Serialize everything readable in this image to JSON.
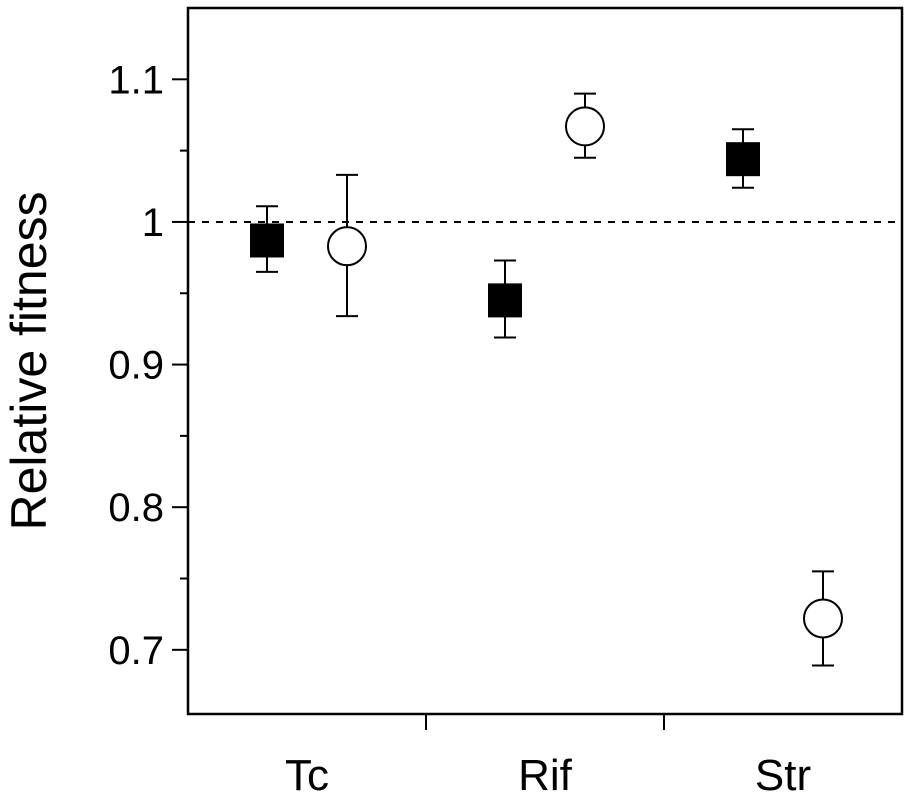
{
  "chart_data": {
    "type": "scatter",
    "title": "",
    "xlabel": "",
    "ylabel": "Relative fitness",
    "categories": [
      "Tc",
      "Rif",
      "Str"
    ],
    "ylim": [
      0.655,
      1.15
    ],
    "yticks_major": [
      {
        "value": 0.7,
        "label": "0.7"
      },
      {
        "value": 0.8,
        "label": "0.8"
      },
      {
        "value": 0.9,
        "label": "0.9"
      },
      {
        "value": 1.0,
        "label": "1"
      },
      {
        "value": 1.1,
        "label": "1.1"
      }
    ],
    "yticks_minor": [
      0.75,
      0.85,
      0.95,
      1.05
    ],
    "reference_line": {
      "value": 1.0,
      "style": "dashed"
    },
    "grid": false,
    "legend": "none",
    "series": [
      {
        "marker": "filled-square",
        "color": "#000000",
        "points": [
          {
            "category": "Tc",
            "value": 0.987,
            "err_low": 0.965,
            "err_high": 1.011
          },
          {
            "category": "Rif",
            "value": 0.945,
            "err_low": 0.919,
            "err_high": 0.973
          },
          {
            "category": "Str",
            "value": 1.044,
            "err_low": 1.024,
            "err_high": 1.065
          }
        ]
      },
      {
        "marker": "open-circle",
        "color": "#000000",
        "points": [
          {
            "category": "Tc",
            "value": 0.983,
            "err_low": 0.934,
            "err_high": 1.033
          },
          {
            "category": "Rif",
            "value": 1.067,
            "err_low": 1.045,
            "err_high": 1.09
          },
          {
            "category": "Str",
            "value": 0.722,
            "err_low": 0.689,
            "err_high": 0.755
          }
        ]
      }
    ]
  }
}
